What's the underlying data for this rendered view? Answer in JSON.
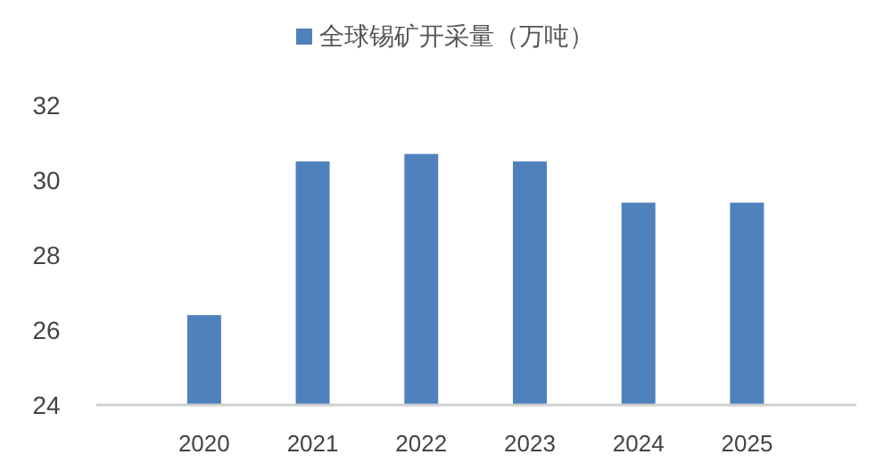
{
  "chart_data": {
    "type": "bar",
    "categories": [
      "2020",
      "2021",
      "2022",
      "2023",
      "2024",
      "2025"
    ],
    "series": [
      {
        "name": "全球锡矿开采量（万吨）",
        "color": "#4f81bd",
        "values": [
          26.4,
          30.5,
          30.7,
          30.5,
          29.4,
          29.4
        ]
      }
    ],
    "ylim": [
      24,
      32
    ],
    "yticks": [
      24,
      26,
      28,
      30,
      32
    ],
    "grid": false,
    "legend": "top"
  }
}
